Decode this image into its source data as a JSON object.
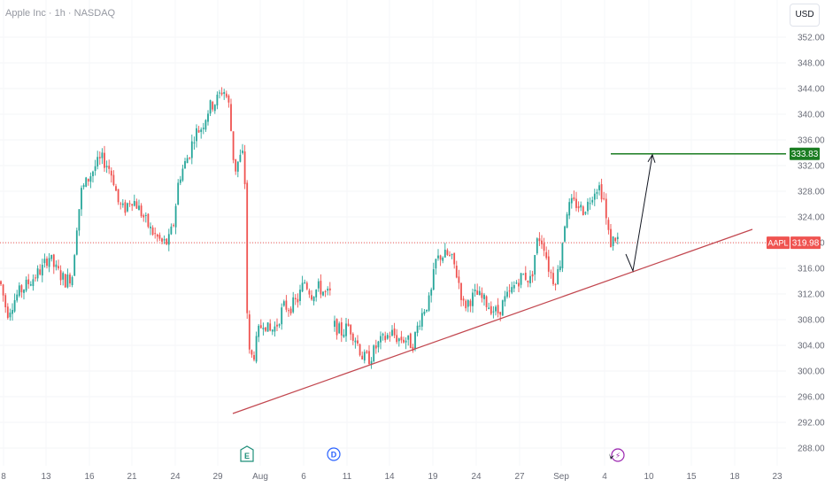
{
  "header": {
    "title": "Apple Inc · 1h · NASDAQ",
    "currency": "USD"
  },
  "colors": {
    "up": "#26a69a",
    "down": "#ef5350",
    "target": "#1b7d22",
    "trend": "#c2474f",
    "arrow": "#131722"
  },
  "chart_data": {
    "type": "candlestick",
    "title": "Apple Inc · 1h · NASDAQ",
    "ylim": [
      286,
      354
    ],
    "y_ticks": [
      352,
      348,
      344,
      340,
      336,
      332,
      328,
      324,
      320,
      316,
      312,
      308,
      304,
      300,
      296,
      292,
      288
    ],
    "y_tick_labels": [
      "352.00",
      "348.00",
      "344.00",
      "340.00",
      "336.00",
      "332.00",
      "328.00",
      "324.00",
      "320.00",
      "316.00",
      "312.00",
      "308.00",
      "304.00",
      "300.00",
      "296.00",
      "292.00",
      "288.00"
    ],
    "x_tick_labels": [
      "8",
      "13",
      "16",
      "21",
      "24",
      "29",
      "Aug",
      "6",
      "11",
      "14",
      "19",
      "24",
      "27",
      "Sep",
      "4",
      "10",
      "15",
      "18",
      "23"
    ],
    "current_price": {
      "symbol": "AAPL",
      "value": 319.98,
      "label": "319.98"
    },
    "target_level": {
      "value": 333.83,
      "label": "333.83"
    },
    "event_markers": [
      {
        "text": "E",
        "date": "Jul 31"
      },
      {
        "text": "D",
        "date": "Aug 9"
      },
      {
        "text": "⚡",
        "date": "Sep 5"
      }
    ],
    "price_path": [
      [
        0,
        314
      ],
      [
        8,
        309
      ],
      [
        20,
        312
      ],
      [
        34,
        314
      ],
      [
        48,
        316
      ],
      [
        55,
        318
      ],
      [
        62,
        316
      ],
      [
        74,
        314
      ],
      [
        82,
        315
      ],
      [
        86,
        322
      ],
      [
        92,
        328
      ],
      [
        100,
        330
      ],
      [
        108,
        332
      ],
      [
        115,
        333
      ],
      [
        122,
        332
      ],
      [
        128,
        330
      ],
      [
        134,
        326
      ],
      [
        140,
        325
      ],
      [
        148,
        327
      ],
      [
        154,
        326
      ],
      [
        162,
        324
      ],
      [
        170,
        322
      ],
      [
        176,
        321
      ],
      [
        183,
        320
      ],
      [
        190,
        320
      ],
      [
        196,
        323
      ],
      [
        202,
        330
      ],
      [
        208,
        332
      ],
      [
        214,
        334
      ],
      [
        220,
        337
      ],
      [
        228,
        338
      ],
      [
        236,
        341
      ],
      [
        244,
        342
      ],
      [
        252,
        344
      ],
      [
        258,
        342
      ],
      [
        262,
        336
      ],
      [
        265,
        331
      ],
      [
        270,
        333
      ],
      [
        276,
        334
      ],
      [
        280,
        303
      ],
      [
        286,
        302
      ],
      [
        292,
        306
      ],
      [
        298,
        308
      ],
      [
        304,
        306
      ],
      [
        312,
        307
      ],
      [
        320,
        310
      ],
      [
        328,
        310
      ],
      [
        336,
        311
      ],
      [
        344,
        314
      ],
      [
        352,
        312
      ],
      [
        360,
        313
      ],
      [
        368,
        312
      ],
      [
        374,
        312
      ],
      [
        378,
        307
      ],
      [
        386,
        306
      ],
      [
        394,
        307
      ],
      [
        402,
        305
      ],
      [
        410,
        302
      ],
      [
        418,
        302
      ],
      [
        426,
        304
      ],
      [
        434,
        305
      ],
      [
        442,
        306
      ],
      [
        450,
        305
      ],
      [
        458,
        305
      ],
      [
        466,
        304
      ],
      [
        474,
        308
      ],
      [
        480,
        310
      ],
      [
        486,
        311
      ],
      [
        492,
        317
      ],
      [
        498,
        318
      ],
      [
        506,
        318
      ],
      [
        512,
        317
      ],
      [
        518,
        314
      ],
      [
        524,
        310
      ],
      [
        530,
        311
      ],
      [
        538,
        312
      ],
      [
        546,
        311
      ],
      [
        554,
        310
      ],
      [
        562,
        309
      ],
      [
        570,
        311
      ],
      [
        576,
        312
      ],
      [
        584,
        314
      ],
      [
        592,
        315
      ],
      [
        600,
        314
      ],
      [
        604,
        318
      ],
      [
        608,
        321
      ],
      [
        614,
        320
      ],
      [
        620,
        316
      ],
      [
        626,
        314
      ],
      [
        632,
        316
      ],
      [
        636,
        321
      ],
      [
        640,
        325
      ],
      [
        646,
        326
      ],
      [
        652,
        326
      ],
      [
        658,
        325
      ],
      [
        664,
        326
      ],
      [
        670,
        328
      ],
      [
        676,
        329
      ],
      [
        682,
        327
      ],
      [
        686,
        322
      ],
      [
        690,
        320
      ],
      [
        696,
        321
      ],
      [
        700,
        320
      ]
    ]
  }
}
